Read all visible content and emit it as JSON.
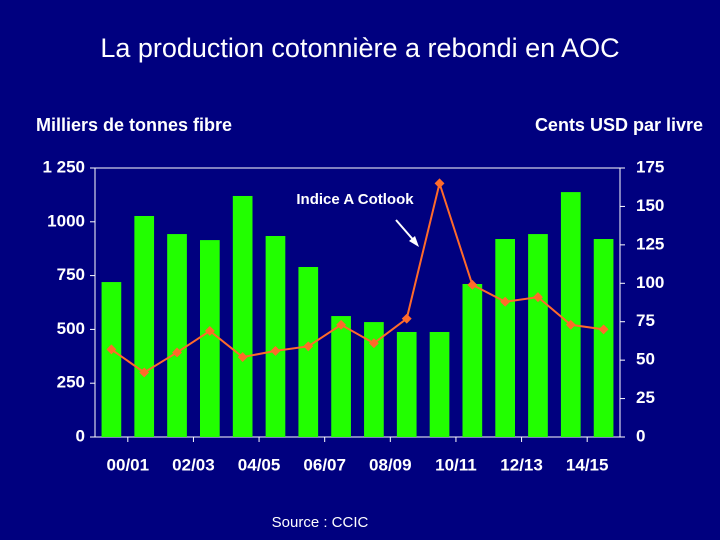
{
  "chart_data": {
    "type": "bar",
    "title": "La production cotonnière a rebondi en AOC",
    "y_label": "Milliers de tonnes fibre",
    "y2_label": "Cents USD par livre",
    "annotation": "Indice A Cotlook",
    "source": "Source : CCIC",
    "categories": [
      "00/01",
      null,
      "02/03",
      null,
      "04/05",
      null,
      "06/07",
      null,
      "08/09",
      null,
      "10/11",
      null,
      "12/13",
      null,
      "14/15",
      null
    ],
    "series": [
      {
        "name": "Production",
        "type": "bar",
        "color": "#22ff00",
        "values": [
          720,
          1027,
          943,
          915,
          1120,
          934,
          790,
          562,
          534,
          488,
          488,
          711,
          920,
          943,
          1138,
          920
        ]
      },
      {
        "name": "Indice A Cotlook",
        "type": "line",
        "axis": "y2",
        "color": "#ff6a2a",
        "values": [
          57,
          42,
          55,
          69,
          52,
          56,
          59,
          73,
          61,
          77,
          165,
          99,
          88,
          91,
          73,
          70
        ]
      }
    ],
    "ylim": [
      0,
      1250
    ],
    "yticks": [
      0,
      250,
      500,
      750,
      1000,
      {
        "value": 1250,
        "label": "1 250"
      }
    ],
    "y2lim": [
      0,
      175
    ],
    "y2ticks": [
      0,
      25,
      50,
      75,
      100,
      125,
      150,
      175
    ],
    "grid": false
  }
}
